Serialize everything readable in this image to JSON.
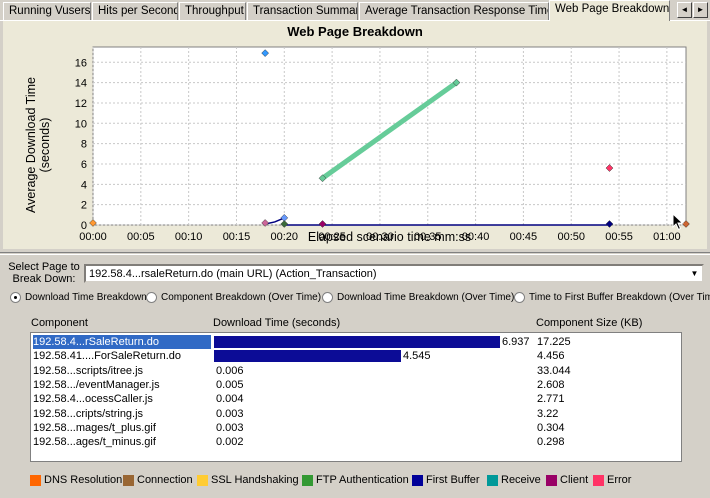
{
  "tabs": [
    {
      "label": "Running Vusers"
    },
    {
      "label": "Hits per Second"
    },
    {
      "label": "Throughput"
    },
    {
      "label": "Transaction Summary"
    },
    {
      "label": "Average Transaction Response Time"
    },
    {
      "label": "Web Page Breakdown",
      "active": true
    }
  ],
  "tab_arrows": {
    "left": "◄",
    "right": "►"
  },
  "chart_data": {
    "type": "line",
    "title": "Web Page Breakdown",
    "xlabel": "Elapsed scenario time mm:ss",
    "ylabel": "Average Download Time (seconds)",
    "x_ticks": [
      "00:00",
      "00:05",
      "00:10",
      "00:15",
      "00:20",
      "00:25",
      "00:30",
      "00:35",
      "00:40",
      "00:45",
      "00:50",
      "00:55",
      "01:00"
    ],
    "y_ticks": [
      "0",
      "2",
      "4",
      "6",
      "8",
      "10",
      "12",
      "14",
      "16"
    ],
    "xlim": [
      "00:00",
      "01:02"
    ],
    "ylim": [
      0,
      17.5
    ],
    "grid": true,
    "series": [
      {
        "color": "#66cc99",
        "points": [
          [
            "00:24",
            4.6
          ],
          [
            "00:38",
            14.0
          ]
        ]
      },
      {
        "color": "#000080",
        "points": [
          [
            "00:18",
            0.1
          ],
          [
            "00:19",
            0.3
          ],
          [
            "00:20",
            0.7
          ]
        ]
      },
      {
        "color": "#000080",
        "points": [
          [
            "00:20",
            0.0
          ],
          [
            "00:24",
            0.0
          ],
          [
            "00:54",
            0.0
          ]
        ]
      }
    ],
    "markers": [
      {
        "x": "00:00",
        "y": 0.2,
        "color": "#ff9933"
      },
      {
        "x": "00:18",
        "y": 16.9,
        "color": "#3399ff"
      },
      {
        "x": "00:18",
        "y": 0.2,
        "color": "#cc6699"
      },
      {
        "x": "00:20",
        "y": 0.7,
        "color": "#6699ff"
      },
      {
        "x": "00:20",
        "y": 0.1,
        "color": "#3a6a3a"
      },
      {
        "x": "00:24",
        "y": 0.1,
        "color": "#990066"
      },
      {
        "x": "00:24",
        "y": 4.6,
        "color": "#66cc99"
      },
      {
        "x": "00:38",
        "y": 14.0,
        "color": "#66cc99"
      },
      {
        "x": "00:54",
        "y": 5.6,
        "color": "#ff3366"
      },
      {
        "x": "00:54",
        "y": 0.1,
        "color": "#000080"
      },
      {
        "x": "01:02",
        "y": 0.1,
        "color": "#cc6633"
      }
    ]
  },
  "page_select": {
    "label": "Select Page to Break Down:",
    "value": "192.58.4...rsaleReturn.do (main URL) (Action_Transaction)",
    "drop": "▼"
  },
  "radios": [
    {
      "label": "Download Time Breakdown",
      "checked": true
    },
    {
      "label": "Component Breakdown (Over Time)",
      "checked": false
    },
    {
      "label": "Download Time Breakdown (Over Time)",
      "checked": false
    },
    {
      "label": "Time to First Buffer Breakdown (Over Time)",
      "checked": false
    }
  ],
  "table": {
    "headers": {
      "component": "Component",
      "download": "Download Time (seconds)",
      "size": "Component Size (KB)"
    },
    "max_time": 6.937,
    "rows": [
      {
        "component": "192.58.4...rSaleReturn.do",
        "time": "6.937",
        "size": "17.225",
        "selected": true
      },
      {
        "component": "192.58.41....ForSaleReturn.do",
        "time": "4.545",
        "size": "4.456"
      },
      {
        "component": "192.58...scripts/itree.js",
        "time": "0.006",
        "size": "33.044"
      },
      {
        "component": "192.58.../eventManager.js",
        "time": "0.005",
        "size": "2.608"
      },
      {
        "component": "192.58.4...ocessCaller.js",
        "time": "0.004",
        "size": "2.771"
      },
      {
        "component": "192.58...cripts/string.js",
        "time": "0.003",
        "size": "3.22"
      },
      {
        "component": "192.58...mages/t_plus.gif",
        "time": "0.003",
        "size": "0.304"
      },
      {
        "component": "192.58...ages/t_minus.gif",
        "time": "0.002",
        "size": "0.298"
      }
    ]
  },
  "legend": [
    {
      "label": "DNS Resolution",
      "color": "#ff6600"
    },
    {
      "label": "Connection",
      "color": "#996633"
    },
    {
      "label": "SSL Handshaking",
      "color": "#ffcc33"
    },
    {
      "label": "FTP Authentication",
      "color": "#339933"
    },
    {
      "label": "First Buffer",
      "color": "#000099"
    },
    {
      "label": "Receive",
      "color": "#009999"
    },
    {
      "label": "Client",
      "color": "#990066"
    },
    {
      "label": "Error",
      "color": "#ff3366"
    }
  ]
}
